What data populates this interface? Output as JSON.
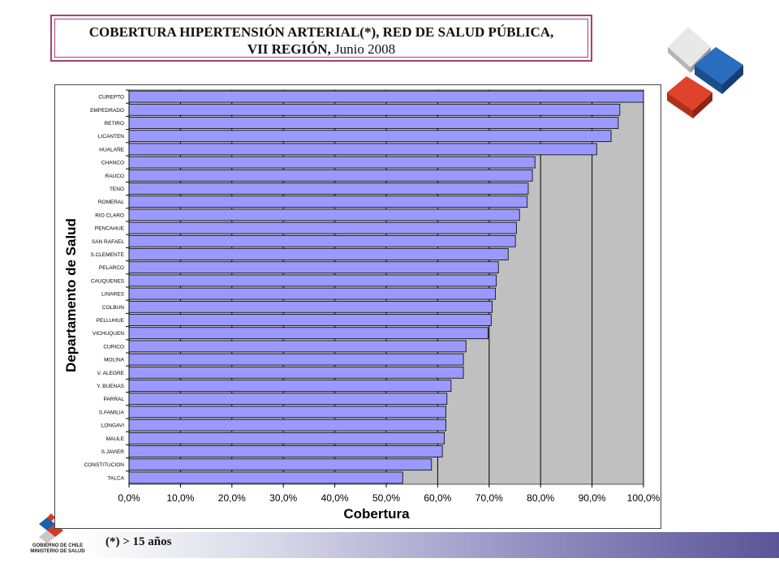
{
  "title": {
    "line1": "COBERTURA HIPERTENSIÓN ARTERIAL(*), RED DE SALUD PÚBLICA,",
    "line2_bold": "VII REGIÓN,",
    "line2_normal": " Junio 2008"
  },
  "footnote": "(*) > 15 años",
  "logo": {
    "line1": "GOBIERNO DE CHILE",
    "line2": "MINISTERIO DE SALUD"
  },
  "colors": {
    "bar_fill": "#9999ff",
    "plot_bg": "#c0c0c0",
    "title_border": "#a5416e",
    "cube_red": "#d13a25",
    "cube_blue": "#1f5fa8",
    "cube_silver": "#d5d5d5"
  },
  "chart_data": {
    "type": "bar",
    "orientation": "horizontal",
    "xlabel": "Cobertura",
    "ylabel": "Departamento de Salud",
    "xlim": [
      0,
      1
    ],
    "x_ticks": [
      "0,0%",
      "10,0%",
      "20,0%",
      "30,0%",
      "40,0%",
      "50,0%",
      "60,0%",
      "70,0%",
      "80,0%",
      "90,0%",
      "100,0%"
    ],
    "grid": true,
    "categories": [
      "CUREPTO",
      "EMPEDRADO",
      "RETIRO",
      "LICANTEN",
      "HUALAÑE",
      "CHANCO",
      "RAUCO",
      "TENO",
      "ROMERAL",
      "RIO CLARO",
      "PENCAHUE",
      "SAN RAFAEL",
      "S.CLEMENTE",
      "PELARCO",
      "CAUQUENES",
      "LINARES",
      "COLBUN",
      "PELLUHUE",
      "VICHUQUEN",
      "CURICO",
      "MOLINA",
      "V. ALEGRE",
      "Y. BUENAS",
      "PARRAL",
      "S.FAMILIA",
      "LONGAVI",
      "MAULE",
      "S.JAVIER",
      "CONSTITUCION",
      "TALCA"
    ],
    "values": [
      1.0,
      0.954,
      0.951,
      0.937,
      0.909,
      0.789,
      0.784,
      0.776,
      0.774,
      0.759,
      0.753,
      0.751,
      0.737,
      0.718,
      0.714,
      0.712,
      0.706,
      0.704,
      0.698,
      0.655,
      0.65,
      0.65,
      0.626,
      0.618,
      0.616,
      0.616,
      0.613,
      0.609,
      0.588,
      0.532
    ]
  }
}
